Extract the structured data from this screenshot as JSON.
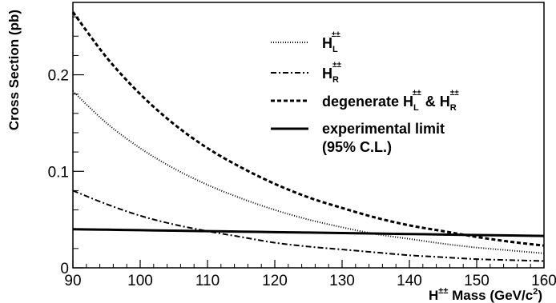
{
  "chart_data": {
    "type": "line",
    "xlabel": {
      "base": "H",
      "sup": "±±",
      "text": " Mass (GeV/c",
      "sup2": "2",
      "end": ")"
    },
    "ylabel": "Cross Section (pb)",
    "xlim": [
      90,
      160
    ],
    "ylim": [
      0,
      0.275
    ],
    "x_ticks": [
      90,
      100,
      110,
      120,
      130,
      140,
      150,
      160
    ],
    "x_tick_labels": [
      "90",
      "100",
      "110",
      "120",
      "130",
      "140",
      "150",
      "160"
    ],
    "y_ticks": [
      0,
      0.1,
      0.2
    ],
    "y_tick_labels": [
      "0",
      "0.1",
      "0.2"
    ],
    "grid": false,
    "legend_position": "top-right",
    "x": [
      90,
      95,
      100,
      105,
      110,
      115,
      120,
      125,
      130,
      135,
      140,
      145,
      150,
      155,
      160
    ],
    "series": [
      {
        "key": "HL",
        "legend": {
          "base": "H",
          "sub": "L",
          "sup": "±±"
        },
        "style": "dotted",
        "values": [
          0.183,
          0.15,
          0.124,
          0.103,
          0.086,
          0.072,
          0.06,
          0.05,
          0.042,
          0.035,
          0.03,
          0.025,
          0.021,
          0.018,
          0.015
        ]
      },
      {
        "key": "HR",
        "legend": {
          "base": "H",
          "sub": "R",
          "sup": "±±"
        },
        "style": "dashdot",
        "values": [
          0.08,
          0.066,
          0.054,
          0.045,
          0.038,
          0.032,
          0.026,
          0.022,
          0.019,
          0.016,
          0.013,
          0.011,
          0.009,
          0.008,
          0.007
        ]
      },
      {
        "key": "deg",
        "legend": {
          "prefix": "degenerate ",
          "base": "H",
          "sub": "L",
          "sup": "±±",
          "mid": " & ",
          "base2": "H",
          "sub2": "R",
          "sup2": "±±"
        },
        "style": "dashed",
        "values": [
          0.265,
          0.218,
          0.18,
          0.149,
          0.124,
          0.104,
          0.087,
          0.073,
          0.062,
          0.052,
          0.044,
          0.038,
          0.032,
          0.027,
          0.023
        ]
      },
      {
        "key": "limit",
        "legend": {
          "line1": "experimental limit",
          "line2": "(95% C.L.)"
        },
        "style": "solid",
        "values": [
          0.04,
          0.0395,
          0.039,
          0.0385,
          0.038,
          0.0375,
          0.037,
          0.0365,
          0.036,
          0.0355,
          0.035,
          0.0345,
          0.034,
          0.0335,
          0.033
        ]
      }
    ]
  }
}
